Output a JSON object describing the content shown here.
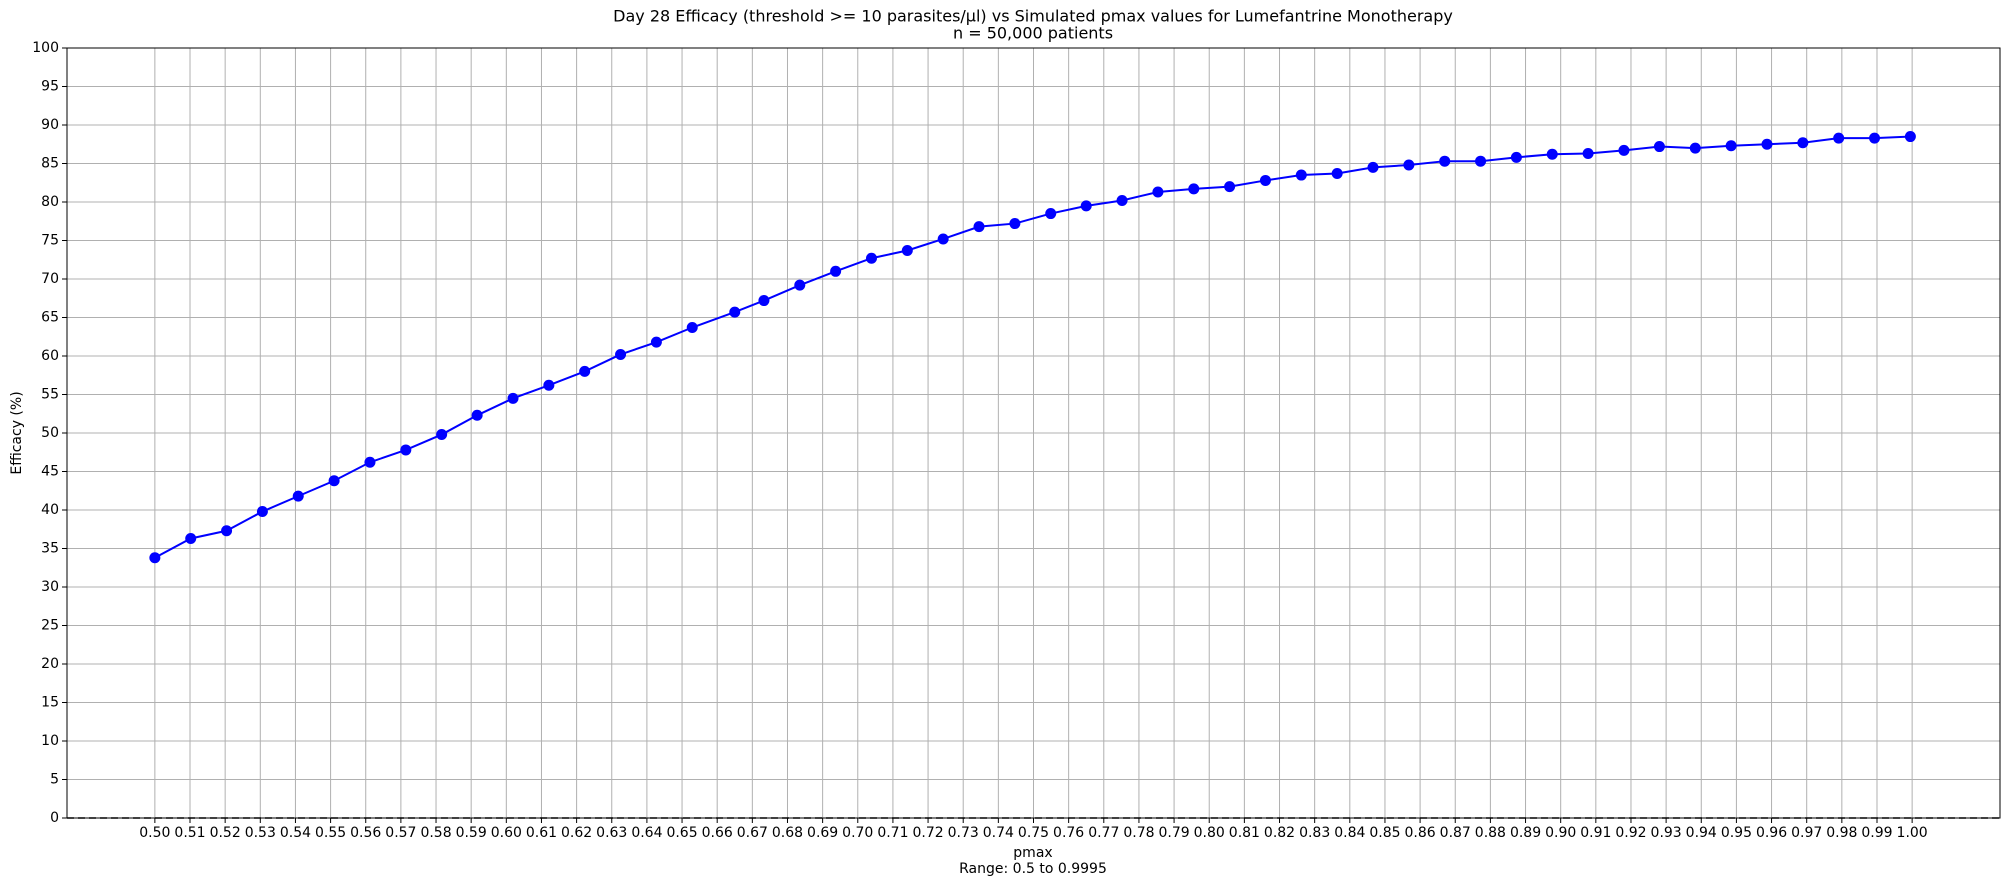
{
  "chart_data": {
    "type": "line",
    "title": "Day 28 Efficacy (threshold >= 10 parasites/µl) vs Simulated pmax values for Lumefantrine Monotherapy",
    "subtitle": "n = 50,000 patients",
    "xlabel": "pmax",
    "xlabel_note": "Range: 0.5 to 0.9995",
    "ylabel": "Efficacy (%)",
    "x": [
      0.5,
      0.5102,
      0.5204,
      0.5306,
      0.5408,
      0.551,
      0.5612,
      0.5714,
      0.5816,
      0.5917,
      0.6019,
      0.6121,
      0.6223,
      0.6325,
      0.6427,
      0.6529,
      0.665,
      0.6733,
      0.6835,
      0.6937,
      0.7039,
      0.7141,
      0.7243,
      0.7345,
      0.7447,
      0.7549,
      0.765,
      0.7752,
      0.7854,
      0.7956,
      0.8058,
      0.816,
      0.8262,
      0.8364,
      0.8466,
      0.8568,
      0.867,
      0.8772,
      0.8874,
      0.8976,
      0.9078,
      0.918,
      0.9281,
      0.9383,
      0.9485,
      0.9587,
      0.9689,
      0.9791,
      0.9893,
      0.9995
    ],
    "series": [
      {
        "name": "Efficacy",
        "color": "#0000ff",
        "values": [
          33.8,
          36.3,
          37.3,
          39.8,
          41.8,
          43.8,
          46.2,
          47.8,
          49.8,
          52.3,
          54.5,
          56.2,
          58.0,
          60.2,
          61.8,
          63.7,
          65.7,
          67.2,
          69.2,
          71.0,
          72.7,
          73.7,
          75.2,
          76.8,
          77.2,
          78.5,
          79.5,
          80.2,
          81.3,
          81.7,
          82.0,
          82.8,
          83.5,
          83.7,
          84.5,
          84.8,
          85.3,
          85.3,
          85.8,
          86.2,
          86.3,
          86.7,
          87.2,
          87.0,
          87.3,
          87.5,
          87.7,
          88.3,
          88.3,
          88.5
        ]
      }
    ],
    "xlim": [
      0.475,
      1.025
    ],
    "ylim": [
      0,
      100
    ],
    "xticks": [
      {
        "value": 0.5,
        "label": "0.50"
      },
      0.51,
      0.52,
      0.53,
      0.54,
      0.55,
      0.56,
      0.57,
      0.58,
      0.59,
      {
        "value": 0.6,
        "label": "0.60"
      },
      0.61,
      0.62,
      0.63,
      0.64,
      0.65,
      0.66,
      0.67,
      0.68,
      0.69,
      {
        "value": 0.7,
        "label": "0.70"
      },
      0.71,
      0.72,
      0.73,
      0.74,
      0.75,
      0.76,
      0.77,
      0.78,
      0.79,
      {
        "value": 0.8,
        "label": "0.80"
      },
      0.81,
      0.82,
      0.83,
      0.84,
      0.85,
      0.86,
      0.87,
      0.88,
      0.89,
      {
        "value": 0.9,
        "label": "0.90"
      },
      0.91,
      0.92,
      0.93,
      0.94,
      0.95,
      0.96,
      0.97,
      0.98,
      0.99,
      {
        "value": 1.0,
        "label": "1.00"
      }
    ],
    "yticks": [
      0,
      5,
      10,
      15,
      20,
      25,
      30,
      35,
      40,
      45,
      50,
      55,
      60,
      65,
      70,
      75,
      80,
      85,
      90,
      95,
      100
    ],
    "hline": 0,
    "grid": true
  }
}
